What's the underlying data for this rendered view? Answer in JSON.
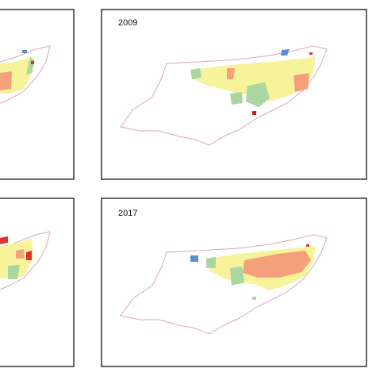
{
  "panels": [
    {
      "label": "2009"
    },
    {
      "label": "2017"
    }
  ]
}
